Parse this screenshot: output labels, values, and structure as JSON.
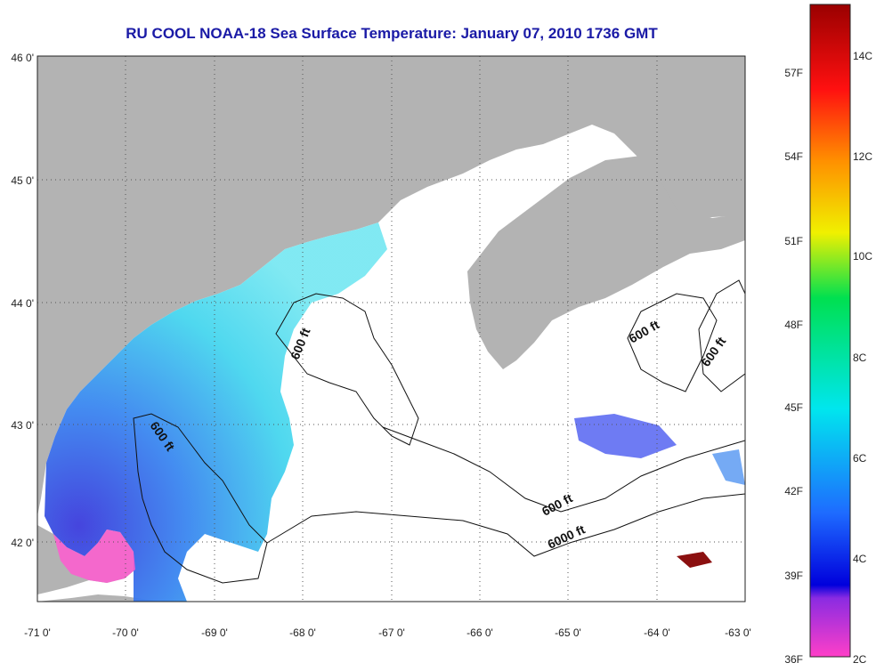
{
  "title": "RU COOL  NOAA-18  Sea Surface Temperature:  January 07, 2010 1736 GMT",
  "map": {
    "lon_ticks": [
      "-71 0'",
      "-70 0'",
      "-69 0'",
      "-68 0'",
      "-67 0'",
      "-66 0'",
      "-65 0'",
      "-64 0'",
      "-63 0'"
    ],
    "lat_ticks": [
      "46 0'",
      "45 0'",
      "44 0'",
      "43 0'",
      "42 0'"
    ],
    "colors": {
      "land": "#b3b3b3",
      "ocean": "#ffffff",
      "grid": "#555555",
      "contour": "#111111"
    },
    "contour_labels": [
      {
        "text": "600 ft"
      },
      {
        "text": "600 ft"
      },
      {
        "text": "600 ft"
      },
      {
        "text": "600 ft"
      },
      {
        "text": "600 ft"
      },
      {
        "text": "6000 ft"
      }
    ]
  },
  "colorbar": {
    "fahrenheit_labels": [
      "57F",
      "54F",
      "51F",
      "48F",
      "45F",
      "42F",
      "39F",
      "36F"
    ],
    "celsius_labels": [
      "14C",
      "12C",
      "10C",
      "8C",
      "6C",
      "4C",
      "2C"
    ]
  }
}
